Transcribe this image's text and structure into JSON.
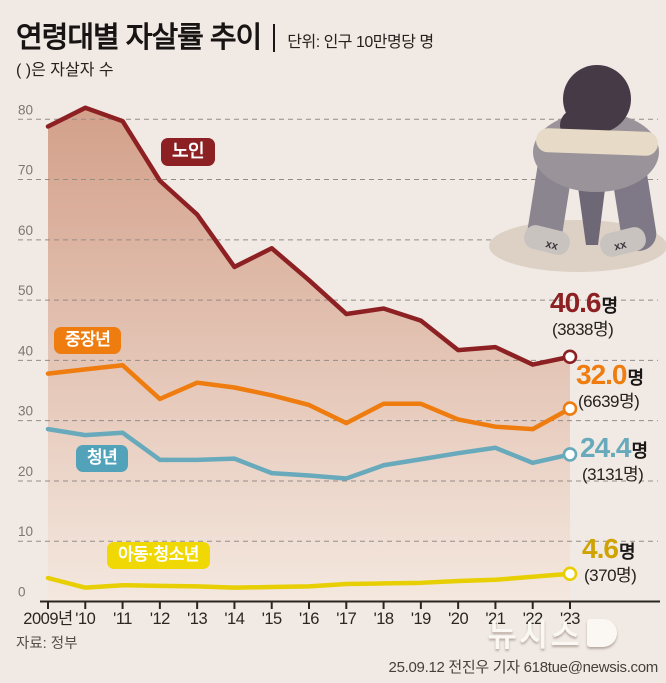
{
  "header": {
    "title": "연령대별 자살률 추이",
    "unit": "단위: 인구 10만명당 명",
    "note": "( )은 자살자 수"
  },
  "chart_data": {
    "type": "line",
    "x": [
      "2009년",
      "'10",
      "'11",
      "'12",
      "'13",
      "'14",
      "'15",
      "'16",
      "'17",
      "'18",
      "'19",
      "'20",
      "'21",
      "'22",
      "'23"
    ],
    "ylim": [
      0,
      80
    ],
    "ytick_step": 10,
    "yticks": [
      "0",
      "10",
      "20",
      "30",
      "40",
      "50",
      "60",
      "70",
      "80"
    ],
    "grid": "horizontal-dashed",
    "legend_position": "inline-on-lines",
    "series": [
      {
        "name": "노인",
        "color": "#8c2023",
        "area": true,
        "values": [
          78.8,
          81.9,
          79.7,
          69.8,
          64.2,
          55.5,
          58.6,
          53.3,
          47.7,
          48.6,
          46.6,
          41.7,
          42.2,
          39.3,
          40.6
        ],
        "end": {
          "rate": "40.6",
          "suffix": "명",
          "count": "(3838명)"
        }
      },
      {
        "name": "중장년",
        "color": "#ee7c0f",
        "area": false,
        "values": [
          37.8,
          38.5,
          39.2,
          33.6,
          36.3,
          35.5,
          34.2,
          32.6,
          29.6,
          32.8,
          32.8,
          30.2,
          29.0,
          28.6,
          32.0
        ],
        "end": {
          "rate": "32.0",
          "suffix": "명",
          "count": "(6639명)"
        }
      },
      {
        "name": "청년",
        "color": "#68aabc",
        "box_color": "#52a3ba",
        "area": false,
        "values": [
          28.6,
          27.6,
          28.0,
          23.5,
          23.5,
          23.7,
          21.3,
          20.9,
          20.4,
          22.6,
          23.6,
          24.6,
          25.5,
          23.0,
          24.4
        ],
        "end": {
          "rate": "24.4",
          "suffix": "명",
          "count": "(3131명)"
        }
      },
      {
        "name": "아동·청소년",
        "color": "#e7cf04",
        "box_color": "#f0d804",
        "label_color": "#cfa402",
        "area": false,
        "values": [
          3.9,
          2.3,
          2.7,
          2.6,
          2.5,
          2.3,
          2.4,
          2.5,
          2.9,
          3.0,
          3.1,
          3.4,
          3.6,
          4.1,
          4.6
        ],
        "end": {
          "rate": "4.6",
          "suffix": "명",
          "count": "(370명)"
        }
      }
    ],
    "colors": {
      "background": "#f1eae4",
      "grid": "#948d86",
      "axis": "#2a2522",
      "y_labels": "#7d776f",
      "x_labels": "#2b2622",
      "area_top": "#d3a08a",
      "area_bottom": "#f4e8df"
    }
  },
  "footer": {
    "source": "자료: 정부",
    "credit": "25.09.12 전진우 기자 618tue@newsis.com",
    "watermark": "뉴시스"
  }
}
